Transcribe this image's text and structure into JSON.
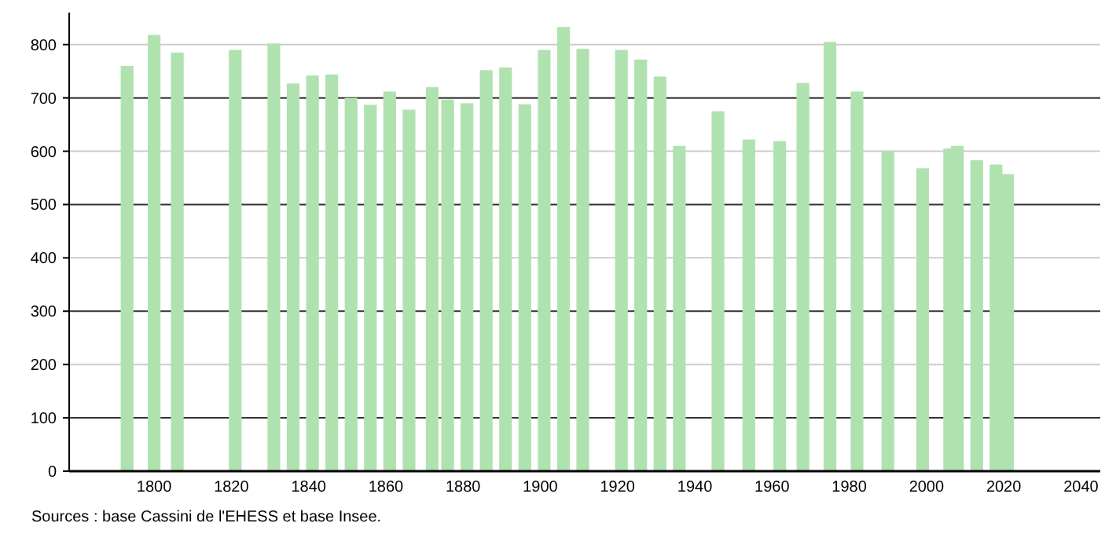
{
  "chart_data": {
    "type": "bar",
    "x": [
      1793,
      1800,
      1806,
      1821,
      1831,
      1836,
      1841,
      1846,
      1851,
      1856,
      1861,
      1866,
      1872,
      1876,
      1881,
      1886,
      1891,
      1896,
      1901,
      1906,
      1911,
      1921,
      1926,
      1931,
      1936,
      1946,
      1954,
      1962,
      1968,
      1975,
      1982,
      1990,
      1999,
      2006,
      2008,
      2013,
      2018,
      2021
    ],
    "values": [
      760,
      818,
      785,
      790,
      802,
      727,
      742,
      744,
      700,
      687,
      712,
      678,
      720,
      697,
      690,
      752,
      757,
      688,
      790,
      833,
      792,
      790,
      772,
      740,
      610,
      675,
      622,
      619,
      728,
      805,
      712,
      600,
      568,
      605,
      610,
      583,
      575,
      557
    ],
    "color": "#b0e2b0",
    "xlim": [
      1778,
      2045
    ],
    "xticks": [
      1800,
      1820,
      1840,
      1860,
      1880,
      1900,
      1920,
      1940,
      1960,
      1980,
      2000,
      2020,
      2040
    ],
    "ylim": [
      0,
      860
    ],
    "yticks": [
      0,
      100,
      200,
      300,
      400,
      500,
      600,
      700,
      800
    ],
    "grid": "y",
    "annotations": [
      "Sources : base Cassini de l'EHESS et base Insee."
    ]
  }
}
